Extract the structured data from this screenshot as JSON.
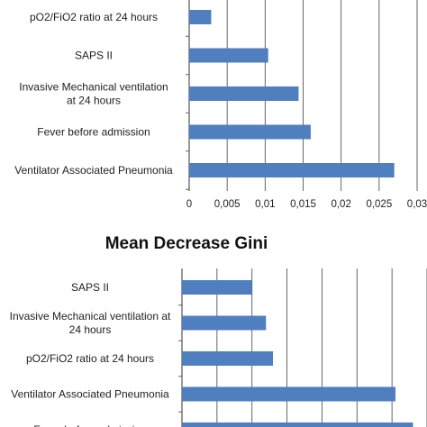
{
  "chart_data": [
    {
      "type": "bar",
      "orientation": "horizontal",
      "title": "",
      "categories": [
        "pO2/FiO2 ratio at 24 hours",
        "SAPS II",
        "Invasive Mechanical ventilation\nat 24 hours",
        "Fever before admission",
        "Ventilator Associated Pneumonia"
      ],
      "values": [
        0.0029,
        0.0104,
        0.0144,
        0.016,
        0.027
      ],
      "xlim": [
        0,
        0.03
      ],
      "x_ticks": [
        "0",
        "0,005",
        "0,01",
        "0,015",
        "0,02",
        "0,025",
        "0,03"
      ],
      "grid": "vertical",
      "bar_color": "#4f7fbf",
      "grid_color": "#555555"
    },
    {
      "type": "bar",
      "orientation": "horizontal",
      "title": "Mean Decrease Gini",
      "categories": [
        "SAPS II",
        "Invasive Mechanical ventilation  at\n24 hours",
        "pO2/FiO2 ratio at 24 hours",
        "Ventilator Associated Pneumonia",
        "Fever before admission"
      ],
      "values": [
        2.0,
        2.4,
        2.6,
        6.1,
        6.6
      ],
      "xlim": [
        0,
        7
      ],
      "grid": "vertical",
      "bar_color": "#4f7fbf",
      "grid_color": "#555555"
    }
  ]
}
